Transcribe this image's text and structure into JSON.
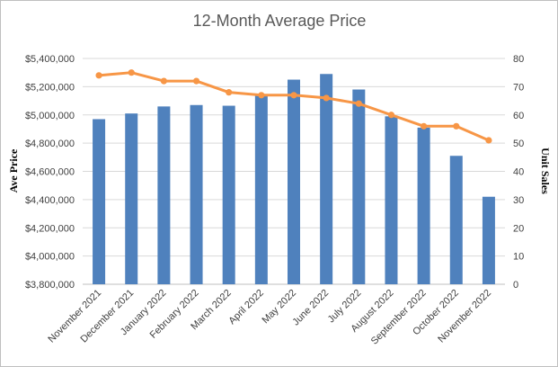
{
  "chart_data": {
    "type": "bar",
    "title": "12-Month Average Price",
    "ylabel": "Ave Price",
    "y2label": "Unit Sales",
    "xlabel": "",
    "categories": [
      "November 2021",
      "December 2021",
      "January 2022",
      "February 2022",
      "March 2022",
      "April 2022",
      "May 2022",
      "June 2022",
      "July 2022",
      "August 2022",
      "September 2022",
      "October 2022",
      "November 2022"
    ],
    "series": [
      {
        "type": "bar",
        "axis": "left",
        "color": "#4f81bd",
        "values": [
          4970000,
          5010000,
          5060000,
          5070000,
          5065000,
          5140000,
          5250000,
          5290000,
          5180000,
          4990000,
          4910000,
          4710000,
          4420000
        ]
      },
      {
        "type": "line",
        "axis": "right",
        "color": "#f79646",
        "values": [
          74,
          75,
          72,
          72,
          68,
          67,
          67,
          66,
          64,
          60,
          56,
          56,
          51
        ]
      }
    ],
    "ylim": [
      3800000,
      5400000
    ],
    "y2lim": [
      0,
      80
    ],
    "yticks": [
      "$3,800,000",
      "$4,000,000",
      "$4,200,000",
      "$4,400,000",
      "$4,600,000",
      "$4,800,000",
      "$5,000,000",
      "$5,200,000",
      "$5,400,000"
    ],
    "y2ticks": [
      "0",
      "10",
      "20",
      "30",
      "40",
      "50",
      "60",
      "70",
      "80"
    ],
    "grid": true,
    "legend": "none"
  }
}
